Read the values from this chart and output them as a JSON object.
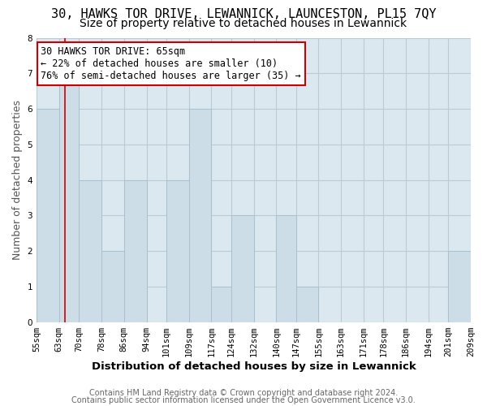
{
  "title": "30, HAWKS TOR DRIVE, LEWANNICK, LAUNCESTON, PL15 7QY",
  "subtitle": "Size of property relative to detached houses in Lewannick",
  "xlabel": "Distribution of detached houses by size in Lewannick",
  "ylabel": "Number of detached properties",
  "bin_labels": [
    "55sqm",
    "63sqm",
    "70sqm",
    "78sqm",
    "86sqm",
    "94sqm",
    "101sqm",
    "109sqm",
    "117sqm",
    "124sqm",
    "132sqm",
    "140sqm",
    "147sqm",
    "155sqm",
    "163sqm",
    "171sqm",
    "178sqm",
    "186sqm",
    "194sqm",
    "201sqm",
    "209sqm"
  ],
  "bin_edges": [
    55,
    63,
    70,
    78,
    86,
    94,
    101,
    109,
    117,
    124,
    132,
    140,
    147,
    155,
    163,
    171,
    178,
    186,
    194,
    201,
    209
  ],
  "bar_heights": [
    6,
    7,
    4,
    2,
    4,
    0,
    4,
    6,
    1,
    3,
    0,
    3,
    1,
    0,
    0,
    0,
    0,
    0,
    0,
    2,
    0
  ],
  "bar_color": "#ccdde8",
  "bar_edgecolor": "#a8c0d0",
  "grid_color": "#b8ccd8",
  "plot_bg_color": "#dce8f0",
  "redline_x": 65,
  "redline_color": "#cc0000",
  "annotation_text": "30 HAWKS TOR DRIVE: 65sqm\n← 22% of detached houses are smaller (10)\n76% of semi-detached houses are larger (35) →",
  "annotation_box_edgecolor": "#cc0000",
  "annotation_box_facecolor": "#ffffff",
  "ylim": [
    0,
    8
  ],
  "yticks": [
    0,
    1,
    2,
    3,
    4,
    5,
    6,
    7,
    8
  ],
  "footnote1": "Contains HM Land Registry data © Crown copyright and database right 2024.",
  "footnote2": "Contains public sector information licensed under the Open Government Licence v3.0.",
  "title_fontsize": 11,
  "subtitle_fontsize": 10,
  "xlabel_fontsize": 9.5,
  "ylabel_fontsize": 9,
  "tick_fontsize": 7.5,
  "annotation_fontsize": 8.5,
  "footnote_fontsize": 7
}
